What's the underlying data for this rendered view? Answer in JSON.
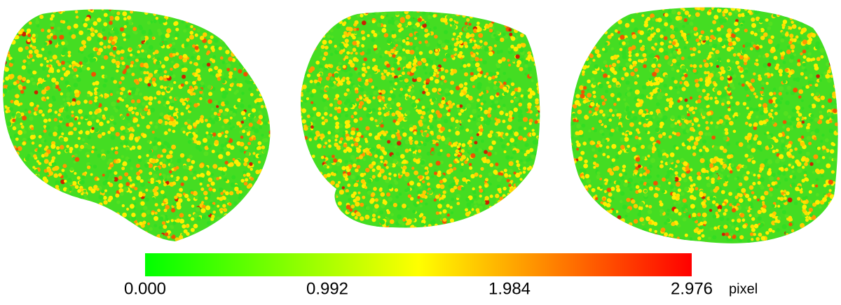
{
  "colorbar": {
    "range": [
      0,
      2.976
    ],
    "ticks": [
      {
        "value": 0,
        "label": "0.000"
      },
      0.992,
      1.984,
      2.976
    ],
    "unit": "pixel",
    "colors": [
      "#00ff00",
      "#ffff00",
      "#ff0000"
    ]
  }
}
